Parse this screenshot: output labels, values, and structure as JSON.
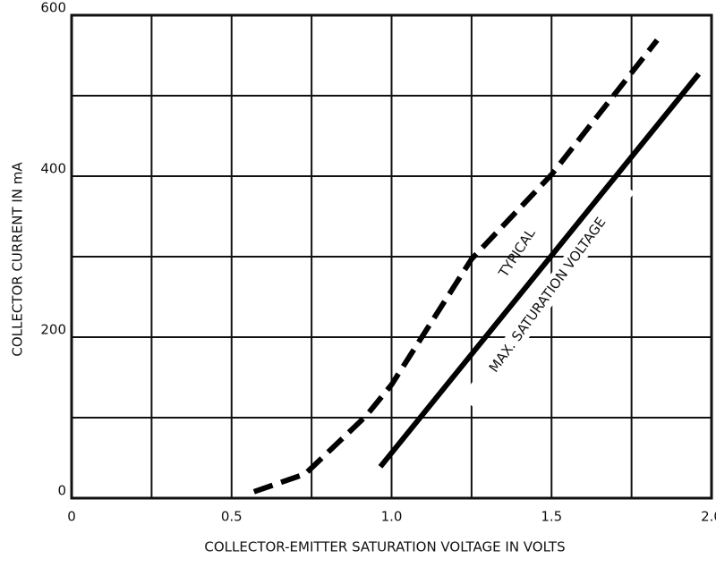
{
  "chart_data": {
    "type": "line",
    "xlabel": "COLLECTOR-EMITTER SATURATION VOLTAGE IN VOLTS",
    "ylabel": "COLLECTOR CURRENT IN mA",
    "xlim": [
      0,
      2
    ],
    "ylim": [
      0,
      600
    ],
    "xticks": [
      0,
      0.5,
      {
        "value": 1,
        "label": "1.0"
      },
      1.5,
      {
        "value": 2,
        "label": "2.0"
      }
    ],
    "yticks": [
      0,
      200,
      400,
      600
    ],
    "xgrid": [
      0,
      0.25,
      0.5,
      0.75,
      1,
      1.25,
      1.5,
      1.75,
      2
    ],
    "ygrid": [
      0,
      100,
      200,
      300,
      400,
      500,
      600
    ],
    "series": [
      {
        "name": "TYPICAL",
        "color": "#000000",
        "dashed": true,
        "x": [
          0.57,
          0.73,
          0.92,
          1.0,
          1.25,
          1.5,
          1.83
        ],
        "values": [
          8,
          30,
          102,
          141,
          297,
          402,
          569
        ]
      },
      {
        "name": "MAX. SATURATION VOLTAGE",
        "color": "#000000",
        "dashed": false,
        "x": [
          0.965,
          1.96
        ],
        "values": [
          39,
          527
        ]
      }
    ]
  }
}
